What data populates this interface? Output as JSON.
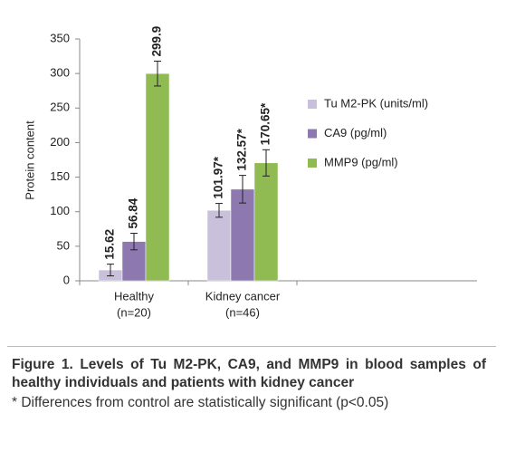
{
  "chart_data": {
    "type": "bar",
    "y_label": "Protein content",
    "categories": [
      [
        "Healthy",
        "(n=20)"
      ],
      [
        "Kidney cancer",
        "(n=46)"
      ]
    ],
    "series": [
      {
        "name": "Tu M2-PK (units/ml)",
        "color": "#c9c0dc",
        "values": [
          15.62,
          101.97
        ],
        "value_labels": [
          "15.62",
          "101.97*"
        ],
        "errors": [
          8.5,
          10
        ]
      },
      {
        "name": "CA9 (pg/ml)",
        "color": "#8e78b0",
        "values": [
          56.84,
          132.57
        ],
        "value_labels": [
          "56.84",
          "132.57*"
        ],
        "errors": [
          12,
          20
        ]
      },
      {
        "name": "MMP9 (pg/ml)",
        "color": "#8fbb52",
        "values": [
          299.9,
          170.65
        ],
        "value_labels": [
          "299.9",
          "170.65*"
        ],
        "errors": [
          18,
          19
        ]
      }
    ],
    "ylim": [
      0,
      350
    ],
    "yticks": [
      0,
      50,
      100,
      150,
      200,
      250,
      300,
      350
    ],
    "grid": false,
    "legend": "right"
  },
  "caption": {
    "title": "Figure 1. Levels of Tu M2-PK, CA9, and MMP9 in blood samples of healthy individuals and patients with kidney cancer",
    "note": "* Differences from control are statistically significant (p<0.05)"
  }
}
